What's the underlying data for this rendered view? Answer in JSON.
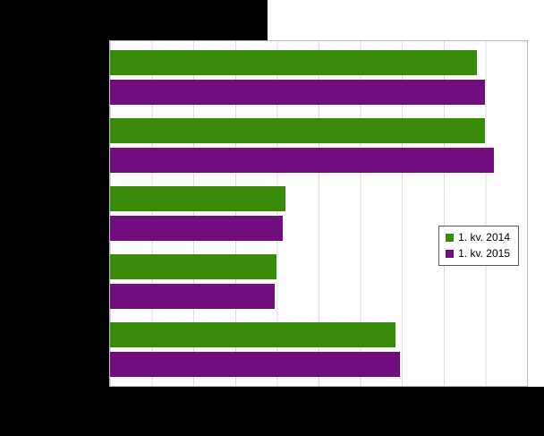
{
  "chart_data": {
    "type": "bar",
    "orientation": "horizontal",
    "title": "",
    "categories": [
      "",
      "",
      "",
      "",
      ""
    ],
    "category_labels_visible": false,
    "axis_tick_labels_visible": false,
    "series": [
      {
        "name": "1. kv. 2014",
        "color": "#3a8a0c",
        "values": [
          88,
          90,
          42,
          40,
          68.5
        ]
      },
      {
        "name": "1. kv. 2015",
        "color": "#720d80",
        "values": [
          90,
          92,
          41.5,
          39.5,
          69.5
        ]
      }
    ],
    "xlim": [
      0,
      100
    ],
    "x_tick_interval": 10,
    "grid": "vertical",
    "legend_position": "middle-right",
    "colors": {
      "plot_background": "#ffffff",
      "outer_background": "#000000",
      "gridline": "#dcdcdc",
      "plot_border": "#bdbdbd",
      "legend_border": "#5a5a5a"
    }
  }
}
